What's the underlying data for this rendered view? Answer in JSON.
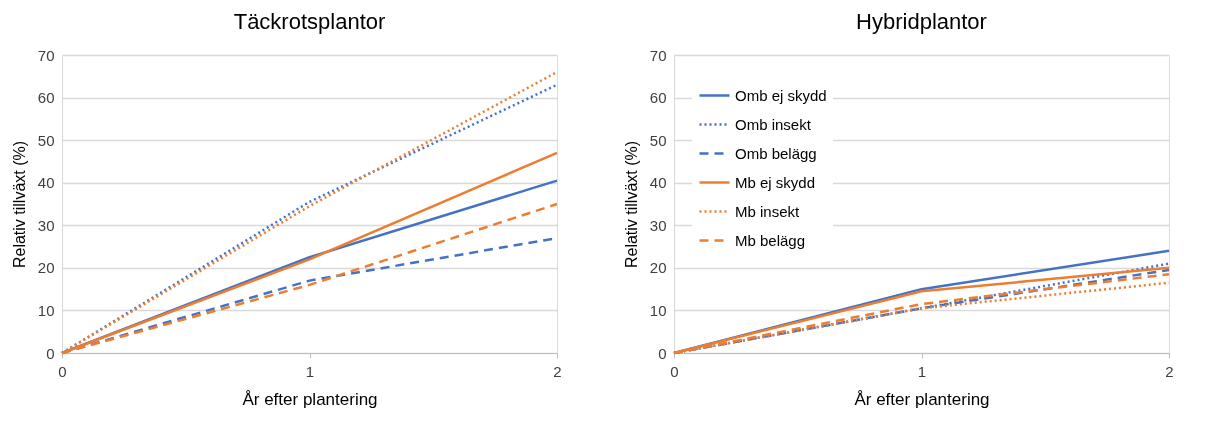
{
  "chart_data": [
    {
      "type": "line",
      "title": "Täckrotsplantor",
      "xlabel": "År efter plantering",
      "ylabel": "Relativ tillväxt (%)",
      "x": [
        0,
        1,
        2
      ],
      "xlim": [
        0,
        2
      ],
      "xticks": [
        0,
        1,
        2
      ],
      "ylim": [
        0,
        70
      ],
      "yticks": [
        0,
        10,
        20,
        30,
        40,
        50,
        60,
        70
      ],
      "grid": "y",
      "legend": false,
      "marker": "none",
      "series": [
        {
          "color": "#4472c4",
          "line_style": "solid",
          "values": [
            0,
            22.5,
            40.5
          ]
        },
        {
          "color": "#4472c4",
          "line_style": "dotted",
          "values": [
            0,
            35.5,
            63
          ]
        },
        {
          "color": "#4472c4",
          "line_style": "dashed",
          "values": [
            0,
            17,
            27
          ]
        },
        {
          "color": "#ed7d31",
          "line_style": "solid",
          "values": [
            0,
            22,
            47
          ]
        },
        {
          "color": "#ed7d31",
          "line_style": "dotted",
          "values": [
            0,
            34.5,
            66
          ]
        },
        {
          "color": "#ed7d31",
          "line_style": "dashed",
          "values": [
            0,
            16,
            35
          ]
        }
      ]
    },
    {
      "type": "line",
      "title": "Hybridplantor",
      "xlabel": "År efter plantering",
      "ylabel": "Relativ tillväxt (%)",
      "x": [
        0,
        1,
        2
      ],
      "xlim": [
        0,
        2
      ],
      "xticks": [
        0,
        1,
        2
      ],
      "ylim": [
        0,
        70
      ],
      "yticks": [
        0,
        10,
        20,
        30,
        40,
        50,
        60,
        70
      ],
      "grid": "y",
      "legend": "top left",
      "marker": "none",
      "series": [
        {
          "name": "Omb ej skydd",
          "color": "#4472c4",
          "line_style": "solid",
          "values": [
            0,
            15,
            24
          ]
        },
        {
          "name": "Omb insekt",
          "color": "#4472c4",
          "line_style": "dotted",
          "values": [
            0,
            10.5,
            21
          ]
        },
        {
          "name": "Omb belägg",
          "color": "#4472c4",
          "line_style": "dashed",
          "values": [
            0,
            10.5,
            19.5
          ]
        },
        {
          "name": "Mb ej skydd",
          "color": "#ed7d31",
          "line_style": "solid",
          "values": [
            0,
            14.5,
            20
          ]
        },
        {
          "name": "Mb insekt",
          "color": "#ed7d31",
          "line_style": "dotted",
          "values": [
            0,
            10.5,
            16.5
          ]
        },
        {
          "name": "Mb belägg",
          "color": "#ed7d31",
          "line_style": "dashed",
          "values": [
            0,
            11.5,
            18.5
          ]
        }
      ]
    }
  ]
}
